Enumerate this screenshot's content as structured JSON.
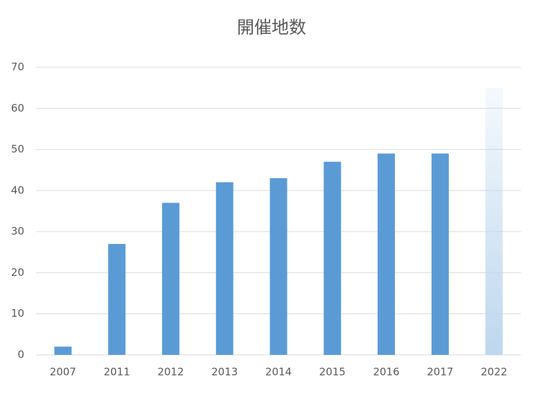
{
  "chart_data": {
    "type": "bar",
    "title": "開催地数",
    "categories": [
      "2007",
      "2011",
      "2012",
      "2013",
      "2014",
      "2015",
      "2016",
      "2017",
      "2022"
    ],
    "values": [
      2,
      27,
      37,
      42,
      43,
      47,
      49,
      49,
      65
    ],
    "colors": [
      "#5b9bd5",
      "#5b9bd5",
      "#5b9bd5",
      "#5b9bd5",
      "#5b9bd5",
      "#5b9bd5",
      "#5b9bd5",
      "#5b9bd5",
      "#bdd7ee"
    ],
    "gradient": [
      false,
      false,
      false,
      false,
      false,
      false,
      false,
      false,
      true
    ],
    "ylim": [
      0,
      70
    ],
    "yticks": [
      0,
      10,
      20,
      30,
      40,
      50,
      60,
      70
    ],
    "grid": true
  }
}
